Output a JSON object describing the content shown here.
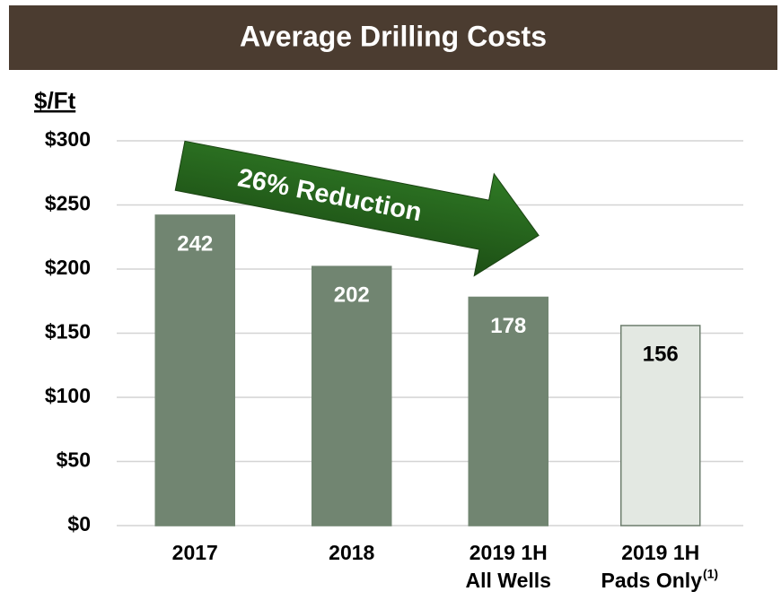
{
  "chart_data": {
    "type": "bar",
    "title": "Average Drilling Costs",
    "y_label": "$/Ft",
    "categories": [
      [
        "2017"
      ],
      [
        "2018"
      ],
      [
        "2019 1H",
        "All Wells"
      ],
      [
        "2019 1H",
        "Pads Only"
      ]
    ],
    "category_superscripts": [
      null,
      null,
      null,
      "(1)"
    ],
    "values": [
      242,
      202,
      178,
      156
    ],
    "colors": [
      "#718571",
      "#718571",
      "#718571",
      "#e3e8e2"
    ],
    "edgecolor": "#6f7f6f",
    "ylim": [
      0,
      300
    ],
    "yticks": [
      {
        "value": 0,
        "label": "$0"
      },
      {
        "value": 50,
        "label": "$50"
      },
      {
        "value": 100,
        "label": "$100"
      },
      {
        "value": 150,
        "label": "$150"
      },
      {
        "value": 200,
        "label": "$200"
      },
      {
        "value": 250,
        "label": "$250"
      },
      {
        "value": 300,
        "label": "$300"
      }
    ],
    "grid": true,
    "annotation": "26% Reduction"
  }
}
